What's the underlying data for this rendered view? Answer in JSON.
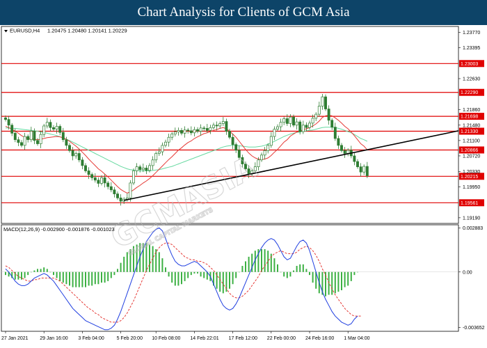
{
  "page": {
    "title": "Chart Analysis for Clients of GCM Asia"
  },
  "watermark": {
    "text": "GCMASIA",
    "subtext": "GLOBAL CAPITAL MARKETS"
  },
  "colors": {
    "title_bg": "#0d4468",
    "level_line": "#e00000",
    "candle": "#2e7d32",
    "ma_red": "#e53935",
    "ma_green": "#66d9a0",
    "trendline": "#000000",
    "macd_hist": "#3cb043",
    "macd_signal": "#e53935",
    "macd_line": "#1f3ee0"
  },
  "chart_data": [
    {
      "type": "candlestick",
      "symbol_label": "EURUSD,H4",
      "ohlc_label": "1.20475 1.20480 1.20141 1.20229",
      "yticks": [
        "1.23770",
        "1.23395",
        "1.23003",
        "1.22630",
        "1.22290",
        "1.21860",
        "1.21698",
        "1.21480",
        "1.21330",
        "1.21100",
        "1.20866",
        "1.20720",
        "1.20330",
        "1.20215",
        "1.19950",
        "1.19561",
        "1.19190"
      ],
      "ylim": [
        1.1905,
        1.2392
      ],
      "xticks": [
        "27 Jan 2021",
        "29 Jan 16:00",
        "3 Feb 04:00",
        "5 Feb 20:00",
        "10 Feb 08:00",
        "14 Feb 22:01",
        "17 Feb 12:00",
        "22 Feb 00:00",
        "24 Feb 16:00",
        "1 Mar 04:00"
      ],
      "levels": [
        1.23003,
        1.2229,
        1.21698,
        1.2133,
        1.20866,
        1.20215,
        1.19561
      ],
      "level_labels": [
        "1.23003",
        "1.22290",
        "1.21698",
        "1.21330",
        "1.20866",
        "1.20215",
        "1.19561"
      ],
      "closes": [
        1.2162,
        1.2148,
        1.2128,
        1.2112,
        1.2105,
        1.2098,
        1.212,
        1.2112,
        1.2133,
        1.211,
        1.2102,
        1.2125,
        1.2146,
        1.2155,
        1.2142,
        1.2138,
        1.2145,
        1.213,
        1.2112,
        1.2098,
        1.2085,
        1.2072,
        1.2078,
        1.2062,
        1.2048,
        1.2035,
        1.2026,
        1.2018,
        1.2012,
        1.2004,
        1.2018,
        1.2005,
        1.1996,
        1.1988,
        1.1978,
        1.1968,
        1.196,
        1.1965,
        1.1968,
        1.2005,
        1.2035,
        1.2045,
        1.2038,
        1.2042,
        1.2036,
        1.2048,
        1.2062,
        1.2078,
        1.2082,
        1.2098,
        1.2106,
        1.2118,
        1.2126,
        1.2131,
        1.2135,
        1.2128,
        1.2136,
        1.2134,
        1.2129,
        1.2137,
        1.2133,
        1.2141,
        1.214,
        1.2135,
        1.2142,
        1.2148,
        1.2146,
        1.2152,
        1.2157,
        1.2133,
        1.2118,
        1.21,
        1.2086,
        1.2068,
        1.2052,
        1.204,
        1.2028,
        1.2035,
        1.2045,
        1.2062,
        1.2074,
        1.2085,
        1.2098,
        1.212,
        1.2138,
        1.2144,
        1.2155,
        1.2164,
        1.2152,
        1.2168,
        1.2148,
        1.2156,
        1.2132,
        1.2148,
        1.2142,
        1.2153,
        1.2165,
        1.2175,
        1.2195,
        1.2218,
        1.2188,
        1.216,
        1.2143,
        1.2115,
        1.2098,
        1.2085,
        1.2078,
        1.2086,
        1.2072,
        1.2058,
        1.2045,
        1.2032,
        1.2046,
        1.2023
      ],
      "ma_red": [
        1.2145,
        1.2142,
        1.2138,
        1.2133,
        1.2128,
        1.2122,
        1.2118,
        1.2115,
        1.2114,
        1.2113,
        1.2112,
        1.2113,
        1.2115,
        1.2117,
        1.2118,
        1.2119,
        1.212,
        1.2119,
        1.2117,
        1.2113,
        1.2108,
        1.2102,
        1.2096,
        1.2089,
        1.2081,
        1.2073,
        1.2064,
        1.2056,
        1.2048,
        1.204,
        1.2034,
        1.2027,
        1.202,
        1.2012,
        1.2004,
        1.1996,
        1.1989,
        1.1984,
        1.198,
        1.1983,
        1.1988,
        1.1994,
        1.1999,
        1.2005,
        1.201,
        1.2016,
        1.2023,
        1.2031,
        1.2039,
        1.2047,
        1.2055,
        1.2063,
        1.207,
        1.2078,
        1.2086,
        1.2092,
        1.2099,
        1.2105,
        1.2109,
        1.2115,
        1.2119,
        1.2123,
        1.2127,
        1.2129,
        1.2132,
        1.2135,
        1.2137,
        1.214,
        1.2142,
        1.2139,
        1.2133,
        1.2126,
        1.2118,
        1.2108,
        1.2098,
        1.2088,
        1.2079,
        1.2072,
        1.2067,
        1.2064,
        1.2063,
        1.2064,
        1.2067,
        1.2073,
        1.2081,
        1.2088,
        1.2097,
        1.2106,
        1.2112,
        1.2121,
        1.2126,
        1.2131,
        1.2133,
        1.2137,
        1.2139,
        1.2142,
        1.2146,
        1.2151,
        1.2158,
        1.2167,
        1.2171,
        1.2172,
        1.2171,
        1.2166,
        1.216,
        1.2153,
        1.2145,
        1.2139,
        1.2131,
        1.2122,
        1.2112,
        1.2102,
        1.2096,
        1.2087
      ],
      "ma_green": [
        1.2141,
        1.2141,
        1.214,
        1.214,
        1.2139,
        1.2138,
        1.2137,
        1.2136,
        1.2135,
        1.2134,
        1.2133,
        1.2131,
        1.213,
        1.2128,
        1.2126,
        1.2124,
        1.2122,
        1.2119,
        1.2116,
        1.2113,
        1.211,
        1.2106,
        1.2102,
        1.2098,
        1.2094,
        1.209,
        1.2086,
        1.2082,
        1.2078,
        1.2074,
        1.207,
        1.2066,
        1.2062,
        1.2058,
        1.2054,
        1.205,
        1.2046,
        1.2043,
        1.204,
        1.2038,
        1.2037,
        1.2036,
        1.2035,
        1.2035,
        1.2035,
        1.2035,
        1.2036,
        1.2037,
        1.2038,
        1.204,
        1.2042,
        1.2044,
        1.2046,
        1.2049,
        1.2052,
        1.2055,
        1.2058,
        1.2061,
        1.2064,
        1.2067,
        1.207,
        1.2073,
        1.2076,
        1.2079,
        1.2082,
        1.2085,
        1.2088,
        1.2091,
        1.2094,
        1.2096,
        1.2097,
        1.2098,
        1.2098,
        1.2097,
        1.2096,
        1.2095,
        1.2094,
        1.2094,
        1.2094,
        1.2095,
        1.2096,
        1.2098,
        1.2101,
        1.2104,
        1.2108,
        1.2112,
        1.2116,
        1.212,
        1.2123,
        1.2126,
        1.2128,
        1.213,
        1.2131,
        1.2133,
        1.2134,
        1.2135,
        1.2136,
        1.2138,
        1.214,
        1.2142,
        1.2143,
        1.2143,
        1.2143,
        1.2142,
        1.214,
        1.2138,
        1.2135,
        1.2132,
        1.2129,
        1.2125,
        1.212,
        1.2115,
        1.2112,
        1.2108
      ],
      "trendline": [
        {
          "bar": 37,
          "y": 1.1962
        },
        {
          "bar": 150,
          "y": 1.2148
        }
      ]
    },
    {
      "type": "macd",
      "label": "MACD(12,26,9) -0.002900 -0.001876 -0.001023",
      "yticks": [
        "0.002883",
        "0.00",
        "-0.003652"
      ],
      "ylim": [
        -0.0039,
        0.0031
      ],
      "macd": [
        0.0002,
        0.0,
        -0.0003,
        -0.0006,
        -0.0008,
        -0.0009,
        -0.0009,
        -0.0008,
        -0.0006,
        -0.0004,
        -0.0003,
        -0.0002,
        -0.0001,
        -0.0002,
        -0.0004,
        -0.0006,
        -0.0009,
        -0.0012,
        -0.0015,
        -0.0018,
        -0.0021,
        -0.0024,
        -0.0026,
        -0.0028,
        -0.003,
        -0.0032,
        -0.0033,
        -0.0034,
        -0.0035,
        -0.0036,
        -0.0037,
        -0.0038,
        -0.0038,
        -0.0037,
        -0.0035,
        -0.0031,
        -0.0026,
        -0.002,
        -0.0014,
        -0.0008,
        -0.0002,
        0.0004,
        0.001,
        0.0015,
        0.002,
        0.0023,
        0.0026,
        0.0028,
        0.0029,
        0.0027,
        0.0022,
        0.0016,
        0.0011,
        0.0007,
        0.0005,
        0.0004,
        0.0004,
        0.0005,
        0.0006,
        0.0007,
        0.0006,
        0.0004,
        0.0002,
        0.0,
        -0.0003,
        -0.0008,
        -0.0013,
        -0.0018,
        -0.0022,
        -0.0024,
        -0.0025,
        -0.0024,
        -0.0021,
        -0.0017,
        -0.0012,
        -0.0007,
        -0.0002,
        0.0003,
        0.0008,
        0.0012,
        0.0016,
        0.0019,
        0.0021,
        0.0022,
        0.0021,
        0.0018,
        0.0014,
        0.001,
        0.0008,
        0.0009,
        0.0013,
        0.0017,
        0.002,
        0.0021,
        0.0019,
        0.0014,
        0.0007,
        0.0,
        -0.0007,
        -0.0013,
        -0.0018,
        -0.0022,
        -0.0026,
        -0.0029,
        -0.0031,
        -0.0033,
        -0.0034,
        -0.0035,
        -0.0034,
        -0.0031,
        -0.0029
      ],
      "signal": [
        0.0004,
        0.0003,
        0.0001,
        -0.0001,
        -0.0003,
        -0.0004,
        -0.0005,
        -0.0006,
        -0.0006,
        -0.0005,
        -0.0005,
        -0.0004,
        -0.0004,
        -0.0004,
        -0.0004,
        -0.0004,
        -0.0005,
        -0.0006,
        -0.0008,
        -0.001,
        -0.0012,
        -0.0014,
        -0.0016,
        -0.0018,
        -0.002,
        -0.0022,
        -0.0024,
        -0.0025,
        -0.0027,
        -0.0028,
        -0.003,
        -0.0031,
        -0.0032,
        -0.0033,
        -0.0033,
        -0.0033,
        -0.0032,
        -0.003,
        -0.0027,
        -0.0023,
        -0.0019,
        -0.0014,
        -0.0009,
        -0.0004,
        0.0001,
        0.0005,
        0.0009,
        0.0013,
        0.0016,
        0.0018,
        0.0019,
        0.0019,
        0.0018,
        0.0016,
        0.0014,
        0.0012,
        0.001,
        0.0009,
        0.0008,
        0.0008,
        0.0007,
        0.0007,
        0.0006,
        0.0005,
        0.0003,
        0.0001,
        -0.0002,
        -0.0005,
        -0.0008,
        -0.0011,
        -0.0014,
        -0.0016,
        -0.0017,
        -0.0017,
        -0.0016,
        -0.0014,
        -0.0012,
        -0.0009,
        -0.0006,
        -0.0003,
        0.0001,
        0.0004,
        0.0007,
        0.001,
        0.0012,
        0.0013,
        0.0014,
        0.0013,
        0.0012,
        0.0012,
        0.0012,
        0.0013,
        0.0015,
        0.0016,
        0.0017,
        0.0016,
        0.0014,
        0.0011,
        0.0007,
        0.0002,
        -0.0002,
        -0.0007,
        -0.0011,
        -0.0015,
        -0.0018,
        -0.0021,
        -0.0024,
        -0.0026,
        -0.0028,
        -0.0029,
        -0.0029,
        -0.0029
      ]
    }
  ]
}
